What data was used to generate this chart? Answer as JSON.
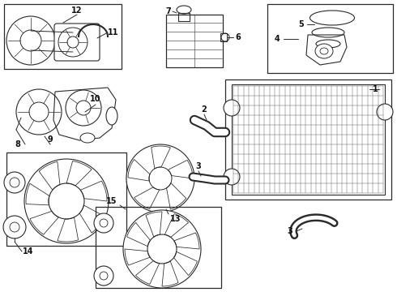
{
  "bg_color": "#ffffff",
  "lc": "#2a2a2a",
  "lw": 0.7,
  "fig_w": 4.9,
  "fig_h": 3.6,
  "dpi": 100
}
